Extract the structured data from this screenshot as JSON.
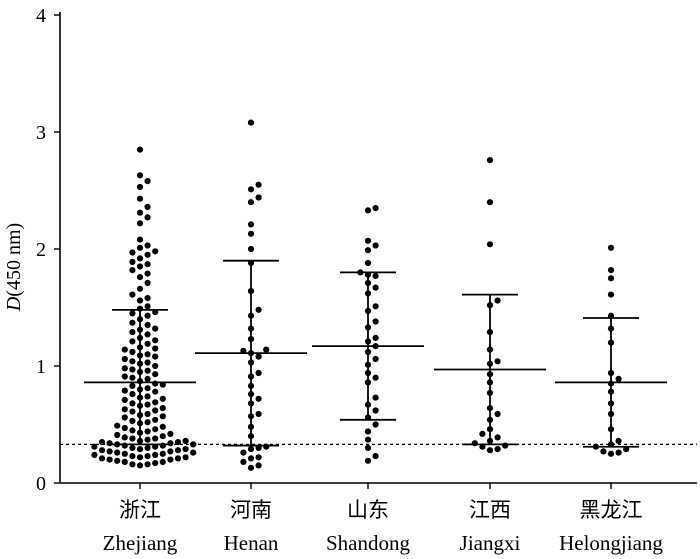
{
  "chart_data": {
    "type": "scatter",
    "subtype": "dot-plot with mean and standard deviation bars",
    "ylabel_italic": "D",
    "ylabel_rest": "(450 nm)",
    "ylim": [
      0,
      4
    ],
    "yticks": [
      0,
      1,
      2,
      3,
      4
    ],
    "cutoff": 0.33,
    "categories": [
      {
        "zh": "浙江",
        "en": "Zhejiang",
        "mean": 0.86,
        "upper": 1.48,
        "lower": 0.33,
        "values": [
          2.85,
          2.63,
          2.58,
          2.53,
          2.43,
          2.36,
          2.31,
          2.27,
          2.22,
          2.08,
          2.03,
          2.01,
          1.98,
          1.97,
          1.95,
          1.92,
          1.89,
          1.87,
          1.85,
          1.82,
          1.79,
          1.76,
          1.71,
          1.66,
          1.61,
          1.56,
          1.51,
          1.49,
          1.46,
          1.43,
          1.4,
          1.37,
          1.35,
          1.32,
          1.29,
          1.27,
          1.24,
          1.21,
          1.19,
          1.16,
          1.14,
          1.12,
          1.1,
          1.08,
          1.06,
          1.04,
          1.02,
          1.0,
          0.98,
          0.96,
          0.95,
          0.93,
          0.91,
          0.89,
          0.87,
          0.85,
          0.83,
          0.81,
          0.8,
          0.78,
          0.76,
          0.74,
          0.72,
          0.71,
          0.69,
          0.67,
          0.66,
          0.64,
          0.62,
          0.61,
          0.59,
          0.57,
          0.56,
          0.54,
          0.52,
          0.51,
          0.49,
          0.48,
          0.46,
          0.45,
          0.43,
          0.42,
          0.41,
          0.39,
          0.38,
          0.37,
          0.36,
          0.35,
          0.34,
          0.33,
          0.32,
          0.31,
          0.3,
          0.29,
          0.28,
          0.27,
          0.26,
          0.25,
          0.24,
          0.23,
          0.22,
          0.21,
          0.2,
          0.19,
          0.18,
          0.17,
          0.16,
          0.15,
          0.4,
          0.36,
          0.34,
          0.32,
          0.3,
          0.28,
          0.26,
          0.24,
          0.22,
          0.2,
          0.18,
          0.16,
          0.38,
          0.35,
          0.33,
          0.31,
          0.29,
          0.27,
          0.25,
          0.23,
          0.21,
          0.44,
          0.47,
          0.53,
          0.58,
          0.63,
          0.68,
          0.73,
          0.79,
          0.84,
          0.9,
          0.97,
          1.03,
          1.09,
          1.15,
          1.22,
          1.31,
          1.45,
          1.58
        ]
      },
      {
        "zh": "河南",
        "en": "Henan",
        "mean": 1.11,
        "upper": 1.9,
        "lower": 0.32,
        "values": [
          3.08,
          2.55,
          2.51,
          2.44,
          2.4,
          2.21,
          2.13,
          2.0,
          1.88,
          1.64,
          1.48,
          1.43,
          1.32,
          1.23,
          1.14,
          1.13,
          1.11,
          1.08,
          1.03,
          0.94,
          0.91,
          0.83,
          0.76,
          0.72,
          0.68,
          0.59,
          0.57,
          0.48,
          0.4,
          0.31,
          0.3,
          0.29,
          0.26,
          0.22,
          0.21,
          0.18,
          0.15,
          0.13
        ]
      },
      {
        "zh": "山东",
        "en": "Shandong",
        "mean": 1.17,
        "upper": 1.8,
        "lower": 0.54,
        "values": [
          2.35,
          2.33,
          2.07,
          2.03,
          1.99,
          1.88,
          1.8,
          1.78,
          1.77,
          1.71,
          1.67,
          1.62,
          1.51,
          1.47,
          1.38,
          1.33,
          1.24,
          1.21,
          1.17,
          1.12,
          1.06,
          1.01,
          0.94,
          0.9,
          0.86,
          0.73,
          0.67,
          0.62,
          0.56,
          0.5,
          0.44,
          0.37,
          0.3,
          0.23,
          0.19
        ]
      },
      {
        "zh": "江西",
        "en": "Jiangxi",
        "mean": 0.97,
        "upper": 1.61,
        "lower": 0.33,
        "values": [
          2.76,
          2.4,
          2.04,
          1.56,
          1.52,
          1.29,
          1.14,
          1.04,
          1.02,
          0.93,
          0.86,
          0.77,
          0.64,
          0.59,
          0.54,
          0.46,
          0.42,
          0.39,
          0.36,
          0.34,
          0.32,
          0.31,
          0.29,
          0.28
        ]
      },
      {
        "zh": "黑龙江",
        "en": "Helongjiang",
        "mean": 0.86,
        "upper": 1.41,
        "lower": 0.31,
        "values": [
          2.01,
          1.82,
          1.75,
          1.61,
          1.43,
          1.32,
          1.2,
          0.94,
          0.89,
          0.85,
          0.78,
          0.68,
          0.59,
          0.46,
          0.36,
          0.33,
          0.31,
          0.29,
          0.27,
          0.26,
          0.25
        ]
      }
    ]
  }
}
